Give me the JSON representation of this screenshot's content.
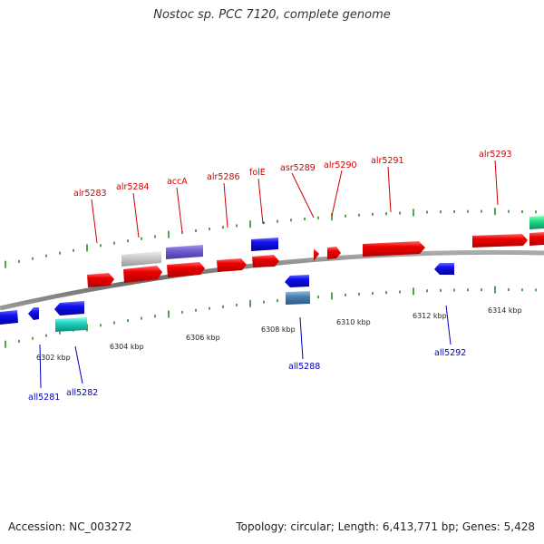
{
  "title": "Nostoc sp. PCC 7120, complete genome",
  "footer": {
    "accession": "Accession: NC_003272",
    "summary": "Topology: circular; Length: 6,413,771 bp; Genes: 5,428"
  },
  "colors": {
    "forward_label": "#cc0000",
    "reverse_label": "#0000bb",
    "backbone": "#888888",
    "tick_marks": "#2a8a2a"
  },
  "scale_labels": [
    "6302 kbp",
    "6304 kbp",
    "6306 kbp",
    "6308 kbp",
    "6310 kbp",
    "6312 kbp",
    "6314 kbp"
  ],
  "genes_forward": [
    {
      "name": "alr5283",
      "color": "red"
    },
    {
      "name": "alr5284",
      "color": "red"
    },
    {
      "name": "accA",
      "color": "red"
    },
    {
      "name": "alr5286",
      "color": "red"
    },
    {
      "name": "folE",
      "color": "red"
    },
    {
      "name": "asr5289",
      "color": "red"
    },
    {
      "name": "alr5290",
      "color": "red"
    },
    {
      "name": "alr5291",
      "color": "red"
    },
    {
      "name": "alr5293",
      "color": "red"
    }
  ],
  "genes_reverse": [
    {
      "name": "all5281",
      "color": "blue"
    },
    {
      "name": "all5282",
      "color": "blue"
    },
    {
      "name": "all5288",
      "color": "blue"
    },
    {
      "name": "all5292",
      "color": "blue"
    }
  ]
}
